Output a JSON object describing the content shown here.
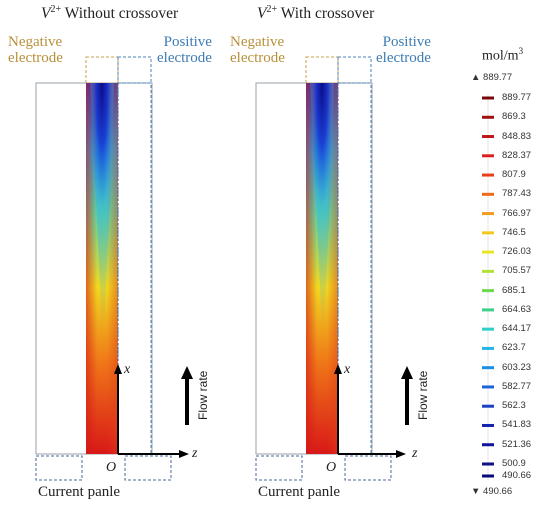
{
  "panels": [
    {
      "title_species": "V",
      "title_charge": "2+",
      "title_rest": " Without crossover",
      "negative_electrode": [
        "Negative",
        "electrode"
      ],
      "positive_electrode": [
        "Positive",
        "electrode"
      ],
      "current_panel_label": "Current panle",
      "flow_rate_label": "Flow rate",
      "axis_x": "x",
      "axis_z": "z",
      "origin": "O"
    },
    {
      "title_species": "V",
      "title_charge": "2+",
      "title_rest": " With crossover",
      "negative_electrode": [
        "Negative",
        "electrode"
      ],
      "positive_electrode": [
        "Positive",
        "electrode"
      ],
      "current_panel_label": "Current panle",
      "flow_rate_label": "Flow rate",
      "axis_x": "x",
      "axis_z": "z",
      "origin": "O"
    }
  ],
  "colorbar": {
    "unit_base": "mol/m",
    "unit_exp": "3",
    "max_label": "▲ 889.77",
    "min_label": "▼ 490.66",
    "ticks": [
      "889.77",
      "869.3",
      "848.83",
      "828.37",
      "807.9",
      "787.43",
      "766.97",
      "746.5",
      "726.03",
      "705.57",
      "685.1",
      "664.63",
      "644.17",
      "623.7",
      "603.23",
      "582.77",
      "562.3",
      "541.83",
      "521.36",
      "500.9",
      "490.66"
    ],
    "colors": [
      "#7a0a0a",
      "#9e1010",
      "#c01818",
      "#d82020",
      "#e6401a",
      "#ee6a18",
      "#f29a1c",
      "#f4c81c",
      "#e8e62a",
      "#b4e03a",
      "#6cd84e",
      "#3cd08a",
      "#30d0c8",
      "#22b6e6",
      "#1c8ee6",
      "#1a64d8",
      "#1a40c4",
      "#1422b0",
      "#10149a",
      "#0c0c86",
      "#08087a"
    ]
  },
  "colors": {
    "negative": "#b8903a",
    "positive": "#3c7cb4"
  }
}
